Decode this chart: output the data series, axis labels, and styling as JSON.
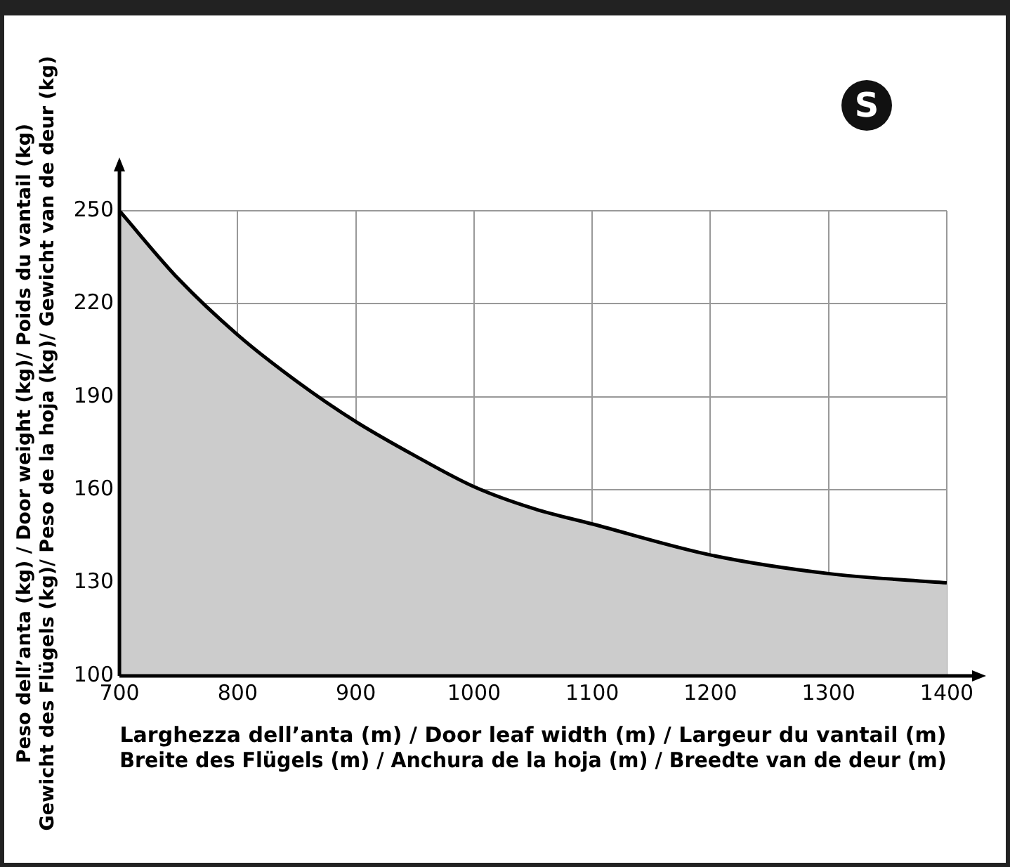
{
  "chart_data": {
    "type": "area",
    "xlabel": "Larghezza dell’anta (m) / Door leaf width (m) / Largeur du vantail (m)\nBreite des Flügels (m) / Anchura de la hoja (m) / Breedte van de deur (m)",
    "ylabel": "Peso dell’anta (kg) / Door weight (kg)/ Poids du vantail (kg)\nGewicht des Flügels (kg)/ Peso de la hoja (kg)/ Gewicht van de deur (kg)",
    "annotations": [
      "S"
    ],
    "x": [
      700,
      750,
      800,
      850,
      900,
      950,
      1000,
      1050,
      1100,
      1200,
      1300,
      1400
    ],
    "series": [
      {
        "color": "#000000",
        "values": [
          250,
          228,
          210,
          195,
          182,
          171,
          161,
          154,
          149,
          139,
          133,
          130
        ]
      }
    ],
    "xlim": [
      700,
      1400
    ],
    "xticks": [
      700,
      800,
      900,
      1000,
      1100,
      1200,
      1300,
      1400
    ],
    "ylim": [
      100,
      250
    ],
    "yticks": [
      100,
      130,
      160,
      190,
      220,
      250
    ],
    "grid": true,
    "legend": false,
    "marker": "none",
    "line_style": "solid"
  }
}
